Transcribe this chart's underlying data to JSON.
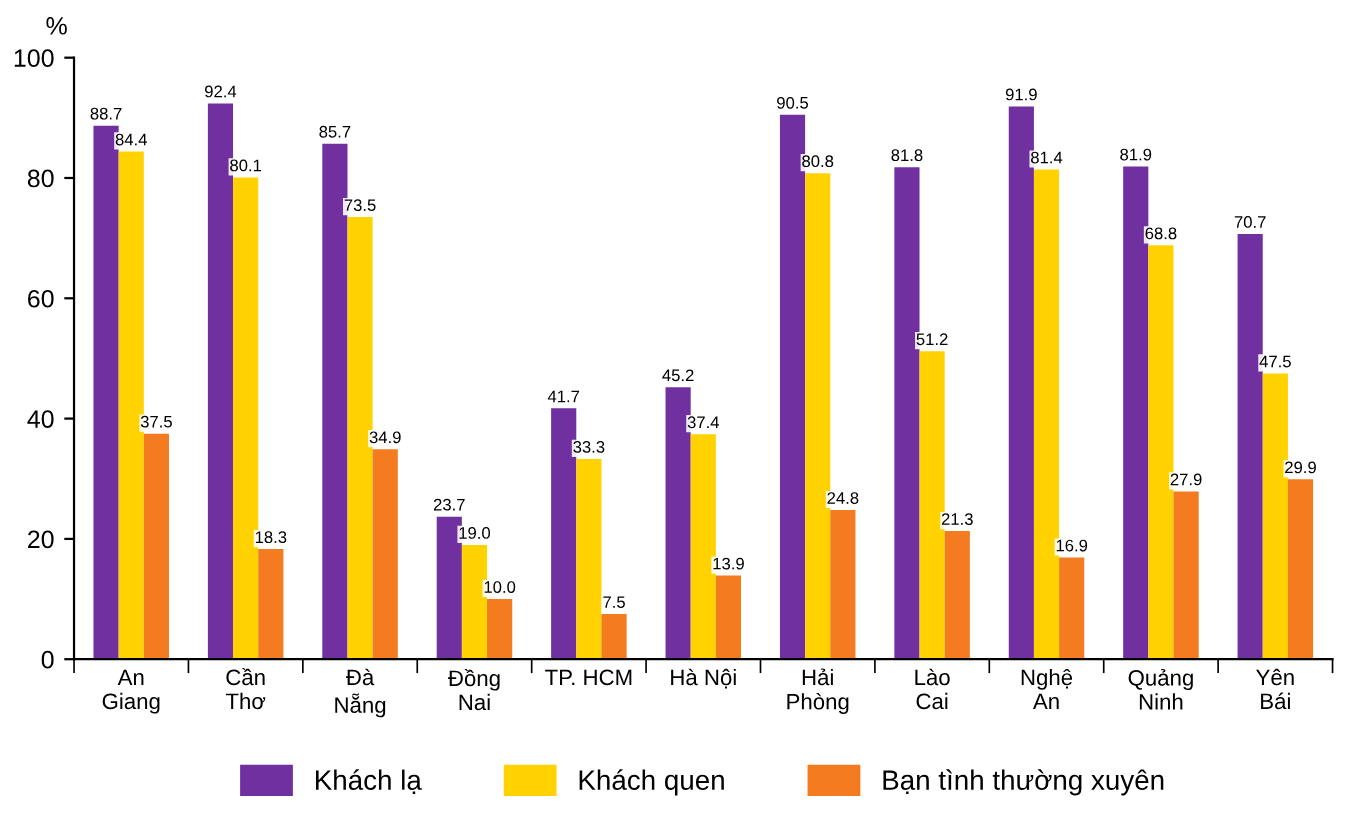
{
  "chart_data": {
    "type": "bar",
    "ylabel": "%",
    "categories": [
      "An\nGiang",
      "Cần\nThơ",
      "Đà\nNẵng",
      "Đồng\nNai",
      "TP. HCM",
      "Hà Nội",
      "Hải\nPhòng",
      "Lào\nCai",
      "Nghệ\nAn",
      "Quảng\nNinh",
      "Yên\nBái"
    ],
    "series": [
      {
        "name": "Khách lạ",
        "color": "#7030a0",
        "values": [
          88.7,
          92.4,
          85.7,
          23.7,
          41.7,
          45.2,
          90.5,
          81.8,
          91.9,
          81.9,
          70.7
        ],
        "value_labels": [
          "88.7",
          "92.4",
          "85.7",
          "23.7",
          "41.7",
          "45.2",
          "90.5",
          "81.8",
          "91.9",
          "81.9",
          "70.7"
        ]
      },
      {
        "name": "Khách quen",
        "color": "#ffd200",
        "values": [
          84.4,
          80.1,
          73.5,
          19.0,
          33.3,
          37.4,
          80.8,
          51.2,
          81.4,
          68.8,
          47.5
        ],
        "value_labels": [
          "84.4",
          "80.1",
          "73.5",
          "19.0",
          "33.3",
          "37.4",
          "80.8",
          "51.2",
          "81.4",
          "68.8",
          "47.5"
        ]
      },
      {
        "name": "Bạn tình thường xuyên",
        "color": "#f47b20",
        "values": [
          37.5,
          18.3,
          34.9,
          10.0,
          7.5,
          13.9,
          24.8,
          21.3,
          16.9,
          27.9,
          29.9
        ],
        "value_labels": [
          "37.5",
          "18.3",
          "34.9",
          "10.0",
          "7.5",
          "13.9",
          "24.8",
          "21.3",
          "16.9",
          "27.9",
          "29.9"
        ]
      }
    ],
    "ylim": [
      0,
      100
    ],
    "yticks": [
      0,
      20,
      40,
      60,
      80,
      100
    ],
    "grid": false,
    "legend": "bottom"
  }
}
